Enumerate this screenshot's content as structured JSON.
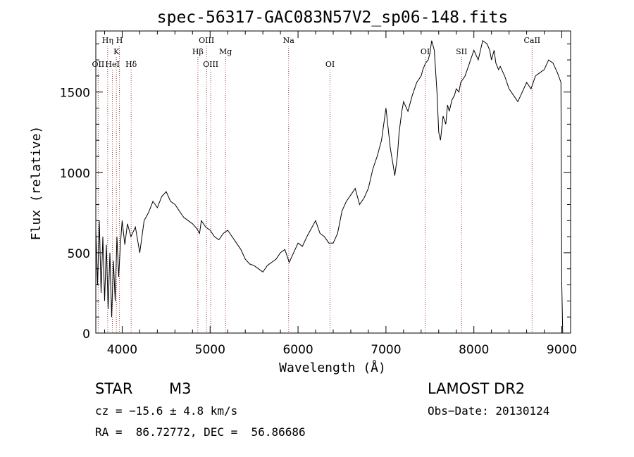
{
  "chart_data": {
    "type": "line",
    "title": "spec-56317-GAC083N57V2_sp06-148.fits",
    "xlabel": "Wavelength (Å)",
    "ylabel": "Flux (relative)",
    "xlim": [
      3700,
      9100
    ],
    "ylim": [
      0,
      1880
    ],
    "xticks": [
      4000,
      5000,
      6000,
      7000,
      8000,
      9000
    ],
    "yticks": [
      0,
      500,
      1000,
      1500
    ],
    "minor_x_step": 200,
    "minor_y_step": 100,
    "grid": false,
    "line_color": "#000000",
    "marker_color": "#a04040",
    "series": [
      {
        "x": [
          3700,
          3720,
          3740,
          3760,
          3780,
          3800,
          3820,
          3840,
          3860,
          3880,
          3900,
          3920,
          3940,
          3960,
          3980,
          4000,
          4030,
          4060,
          4100,
          4150,
          4200,
          4250,
          4300,
          4350,
          4400,
          4450,
          4500,
          4550,
          4600,
          4650,
          4700,
          4750,
          4800,
          4850,
          4880,
          4900,
          4950,
          5000,
          5050,
          5100,
          5150,
          5200,
          5250,
          5300,
          5350,
          5400,
          5450,
          5500,
          5550,
          5600,
          5650,
          5700,
          5750,
          5800,
          5850,
          5900,
          5950,
          6000,
          6050,
          6100,
          6150,
          6200,
          6250,
          6300,
          6350,
          6400,
          6450,
          6500,
          6550,
          6600,
          6650,
          6700,
          6750,
          6800,
          6850,
          6900,
          6950,
          7000,
          7050,
          7080,
          7100,
          7130,
          7150,
          7180,
          7200,
          7250,
          7300,
          7350,
          7400,
          7420,
          7450,
          7480,
          7500,
          7520,
          7550,
          7580,
          7600,
          7620,
          7650,
          7680,
          7700,
          7720,
          7750,
          7780,
          7800,
          7830,
          7850,
          7900,
          7950,
          8000,
          8050,
          8100,
          8150,
          8180,
          8200,
          8230,
          8250,
          8280,
          8300,
          8350,
          8400,
          8450,
          8500,
          8550,
          8600,
          8650,
          8700,
          8750,
          8800,
          8850,
          8900,
          8950,
          8990,
          9000,
          9010
        ],
        "y": [
          650,
          300,
          700,
          250,
          600,
          200,
          550,
          150,
          500,
          100,
          450,
          200,
          600,
          350,
          550,
          700,
          550,
          680,
          600,
          660,
          500,
          700,
          750,
          820,
          780,
          850,
          880,
          820,
          800,
          760,
          720,
          700,
          680,
          650,
          620,
          700,
          660,
          640,
          600,
          580,
          620,
          640,
          600,
          560,
          520,
          460,
          430,
          420,
          400,
          380,
          420,
          440,
          460,
          500,
          520,
          440,
          500,
          560,
          540,
          600,
          650,
          700,
          620,
          600,
          560,
          560,
          620,
          760,
          820,
          860,
          900,
          800,
          840,
          900,
          1020,
          1100,
          1200,
          1400,
          1150,
          1050,
          980,
          1100,
          1250,
          1380,
          1440,
          1380,
          1480,
          1560,
          1600,
          1640,
          1680,
          1700,
          1740,
          1820,
          1760,
          1500,
          1250,
          1200,
          1350,
          1300,
          1420,
          1380,
          1450,
          1480,
          1520,
          1500,
          1560,
          1600,
          1680,
          1760,
          1700,
          1820,
          1800,
          1760,
          1700,
          1760,
          1680,
          1640,
          1660,
          1600,
          1520,
          1480,
          1440,
          1500,
          1560,
          1520,
          1600,
          1620,
          1640,
          1700,
          1680,
          1620,
          1560,
          300,
          0
        ],
        "color": "#000000"
      }
    ],
    "line_markers": [
      {
        "label": "OII",
        "x": 3727,
        "row": 3
      },
      {
        "label": "Hη",
        "x": 3835,
        "row": 1
      },
      {
        "label": "HeI",
        "x": 3889,
        "row": 3
      },
      {
        "label": "K",
        "x": 3934,
        "row": 2
      },
      {
        "label": "H",
        "x": 3969,
        "row": 1
      },
      {
        "label": "Hδ",
        "x": 4102,
        "row": 3
      },
      {
        "label": "Hβ",
        "x": 4861,
        "row": 2
      },
      {
        "label": "OIII",
        "x": 4959,
        "row": 1
      },
      {
        "label": "OIII",
        "x": 5007,
        "row": 3
      },
      {
        "label": "Mg",
        "x": 5175,
        "row": 2
      },
      {
        "label": "Na",
        "x": 5893,
        "row": 1
      },
      {
        "label": "OI",
        "x": 6364,
        "row": 3
      },
      {
        "label": "OI",
        "x": 7446,
        "row": 2
      },
      {
        "label": "SII",
        "x": 7860,
        "row": 2
      },
      {
        "label": "CaII",
        "x": 8662,
        "row": 1
      }
    ]
  },
  "info": {
    "object_class": "STAR",
    "subclass": "M3",
    "survey": "LAMOST DR2",
    "cz": "cz = −15.6 ± 4.8 km/s",
    "obs_date": "Obs−Date: 20130124",
    "radec": "RA =  86.72772, DEC =  56.86686"
  }
}
